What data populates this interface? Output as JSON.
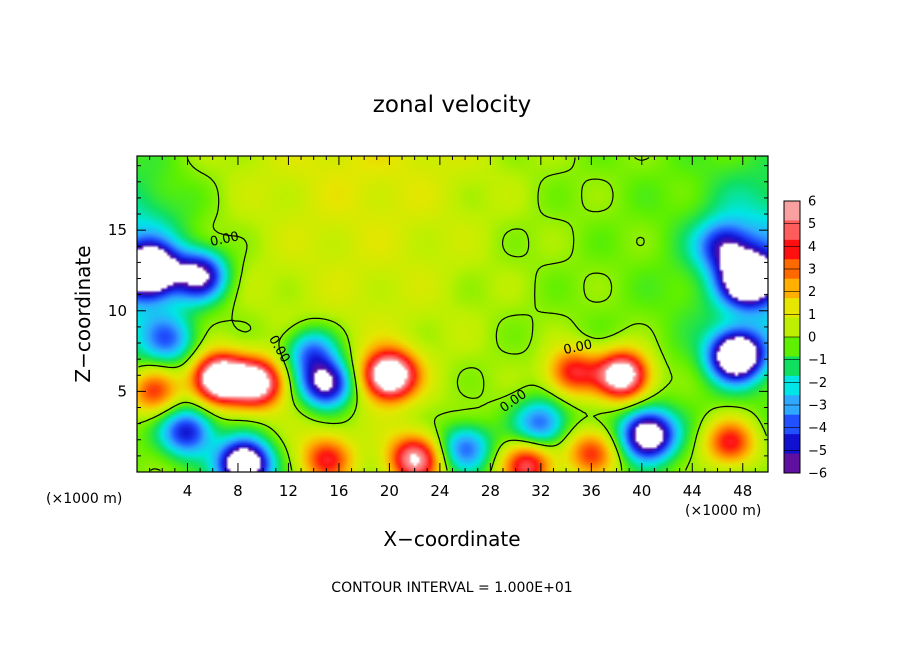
{
  "chart_data": {
    "type": "heatmap",
    "title": "zonal velocity",
    "xlabel": "X−coordinate",
    "ylabel": "Z−coordinate",
    "x_unit_left": "(×1000 m)",
    "x_unit_right": "(×1000 m)",
    "footer": "CONTOUR INTERVAL = 1.000E+01",
    "xlim": [
      0,
      50
    ],
    "ylim": [
      0,
      19.6
    ],
    "x_ticks": [
      4,
      8,
      12,
      16,
      20,
      24,
      28,
      32,
      36,
      40,
      44,
      48
    ],
    "y_ticks": [
      5,
      10,
      15
    ],
    "colorbar": {
      "range": [
        -6,
        6
      ],
      "ticks": [
        "6",
        "5",
        "4",
        "3",
        "2",
        "1",
        "0",
        "−1",
        "−2",
        "−3",
        "−4",
        "−5",
        "−6"
      ],
      "colors": [
        "#f9a0a0",
        "#ff5c5c",
        "#ff1010",
        "#ff6a00",
        "#ffb000",
        "#e6e600",
        "#bdf000",
        "#5ef000",
        "#10e060",
        "#00e6e6",
        "#2fa8ff",
        "#2050ff",
        "#1010d0",
        "#6010a0"
      ],
      "saturated_high_color": "#ffffff",
      "saturated_low_color": "#ffffff"
    },
    "contour_labels": [
      {
        "text": "0.00",
        "x": 7,
        "z": 14.2
      },
      {
        "text": "0.00",
        "x": 11,
        "z": 7.5
      },
      {
        "text": "0.00",
        "x": 35,
        "z": 7.5
      },
      {
        "text": "0.00",
        "x": 30,
        "z": 4.2
      }
    ],
    "features": [
      {
        "kind": "max",
        "x": 6.5,
        "z": 5.8,
        "amplitude": 9
      },
      {
        "kind": "max",
        "x": 9.5,
        "z": 5.5,
        "amplitude": 7
      },
      {
        "kind": "max",
        "x": 20,
        "z": 6,
        "amplitude": 8.5
      },
      {
        "kind": "max",
        "x": 38.5,
        "z": 6,
        "amplitude": 8
      },
      {
        "kind": "max",
        "x": 34.5,
        "z": 6.2,
        "amplitude": 4.5
      },
      {
        "kind": "max",
        "x": 15,
        "z": 0.8,
        "amplitude": 4
      },
      {
        "kind": "max",
        "x": 22,
        "z": 0.8,
        "amplitude": 6
      },
      {
        "kind": "max",
        "x": 31,
        "z": 0.4,
        "amplitude": 5
      },
      {
        "kind": "max",
        "x": 36,
        "z": 1.2,
        "amplitude": 4
      },
      {
        "kind": "max",
        "x": 47,
        "z": 1.8,
        "amplitude": 4.5
      },
      {
        "kind": "max",
        "x": 1.3,
        "z": 5,
        "amplitude": 4
      },
      {
        "kind": "min",
        "x": 1,
        "z": 12.5,
        "amplitude": -9
      },
      {
        "kind": "min",
        "x": 5,
        "z": 12.2,
        "amplitude": -6
      },
      {
        "kind": "min",
        "x": 48.5,
        "z": 12,
        "amplitude": -9
      },
      {
        "kind": "min",
        "x": 46.5,
        "z": 14,
        "amplitude": -4
      },
      {
        "kind": "min",
        "x": 47.5,
        "z": 7.2,
        "amplitude": -9
      },
      {
        "kind": "min",
        "x": 15,
        "z": 5.5,
        "amplitude": -7
      },
      {
        "kind": "min",
        "x": 13.8,
        "z": 7.5,
        "amplitude": -4
      },
      {
        "kind": "min",
        "x": 32,
        "z": 3,
        "amplitude": -4
      },
      {
        "kind": "min",
        "x": 40.5,
        "z": 2.3,
        "amplitude": -8
      },
      {
        "kind": "min",
        "x": 4,
        "z": 2.5,
        "amplitude": -5
      },
      {
        "kind": "min",
        "x": 8.5,
        "z": 0.5,
        "amplitude": -9
      },
      {
        "kind": "min",
        "x": 26,
        "z": 1.5,
        "amplitude": -4
      },
      {
        "kind": "min",
        "x": 2.5,
        "z": 8.2,
        "amplitude": -3
      }
    ],
    "background": {
      "base": -0.3,
      "top_value": 1.6,
      "top_x": 18,
      "sides_negative": -2.5
    }
  }
}
